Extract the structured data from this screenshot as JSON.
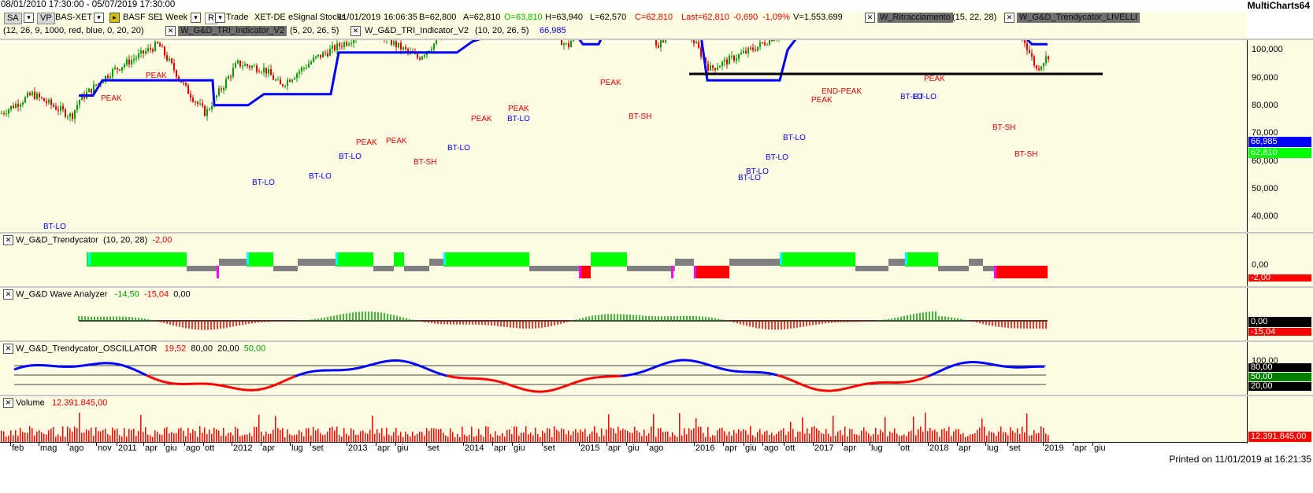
{
  "window": {
    "date_range": "08/01/2010 17:30:00 - 05/07/2019 17:30:00",
    "brand": "MultiCharts64"
  },
  "toolbar": {
    "sa_label": "SA",
    "vp_label": "VP",
    "symbol": "BAS-XET",
    "instrument": "BASF SE",
    "timeframe": "1 Week",
    "r_label": "R",
    "trade_type": "Trade",
    "exchange": "XET-DE",
    "feed": "eSignal Stocks",
    "date": "11/01/2019",
    "time": "16:06:35",
    "bid": "B=62,800",
    "ask": "A=62,810",
    "open": "O=63,810",
    "high": "H=63,940",
    "low": "L=62,570",
    "close": "C=62,810",
    "last": "Last=62,810",
    "change": "-0,690",
    "change_pct": "-1,09%",
    "volume": "V=1.553.699",
    "ind1_name": "W_Ritracciamento",
    "ind1_params": "(15, 22, 28)",
    "ind2_name": "W_G&D_Trendycator_LIVELLI",
    "ind2_params": "(12, 26, 9, 1000, red, blue, 0, 20, 20)",
    "ind3_name": "W_G&D_TRI_Indicator_V2",
    "ind3_params": "(5, 20, 26, 5)",
    "ind4_name": "W_G&D_TRI_Indicator_V2",
    "ind4_params": "(10, 20, 26, 5)",
    "ind4_value": "66,985"
  },
  "colors": {
    "up": "#00a000",
    "down": "#e00000",
    "blue": "#0000ff",
    "green_bar": "#00ff00",
    "gray_bar": "#808080",
    "red_bar": "#ff0000",
    "magenta": "#ff00ff",
    "cyan": "#00ffff",
    "pane_bg": "#fffce4"
  },
  "price_pane": {
    "ticks": [
      "100,000",
      "90,000",
      "80,000",
      "70,000",
      "60,000",
      "50,000",
      "40,000"
    ],
    "tag_blue": "66,985",
    "tag_green": "62,810",
    "annotations": [
      "PEAK",
      "PEAK",
      "PEAK",
      "PEAK",
      "PEAK",
      "PEAK",
      "PEAK",
      "END-PEAK",
      "PEAK",
      "PEAK",
      "BT-LO",
      "BT-LO",
      "BT-LO",
      "BT-LO",
      "BT-LO",
      "BT-LO",
      "BT-LO",
      "BT-LO",
      "BT-LO",
      "BT-LO",
      "BT-SH",
      "BT-SH",
      "BT-SH",
      "BT-SH",
      "BT-LO",
      "BT-LO"
    ]
  },
  "trend_pane": {
    "title": "W_G&D_Trendycator",
    "params": "(10, 20, 28)",
    "value": "-2,00",
    "tick": "0,00",
    "tag": "-2,00"
  },
  "wave_pane": {
    "title": "W_G&D Wave Analyzer",
    "v1": "-14,50",
    "v2": "-15,04",
    "v3": "0,00",
    "tag_black": "0,00",
    "tag_red": "-15,04"
  },
  "osc_pane": {
    "title": "W_G&D_Trendycator_OSCILLATOR",
    "v1": "19,52",
    "v2": "80,00",
    "v3": "20,00",
    "v4": "50,00",
    "ticks": [
      "100,00",
      "80,00",
      "50,00",
      "20,00"
    ]
  },
  "volume_pane": {
    "title": "Volume",
    "value": "12.391.845,00",
    "tag": "12.391.845,00"
  },
  "x_axis": [
    "feb",
    "mag",
    "ago",
    "nov",
    "2011",
    "apr",
    "giu",
    "ago",
    "ott",
    "2012",
    "apr",
    "lug",
    "set",
    "2013",
    "apr",
    "giu",
    "set",
    "2014",
    "apr",
    "giu",
    "set",
    "2015",
    "apr",
    "giu",
    "ago",
    "2016",
    "apr",
    "giu",
    "ago",
    "ott",
    "2017",
    "apr",
    "lug",
    "ott",
    "2018",
    "apr",
    "lug",
    "set",
    "2019",
    "apr",
    "giu"
  ],
  "footer": "Printed on 11/01/2019 at 16:21:35"
}
